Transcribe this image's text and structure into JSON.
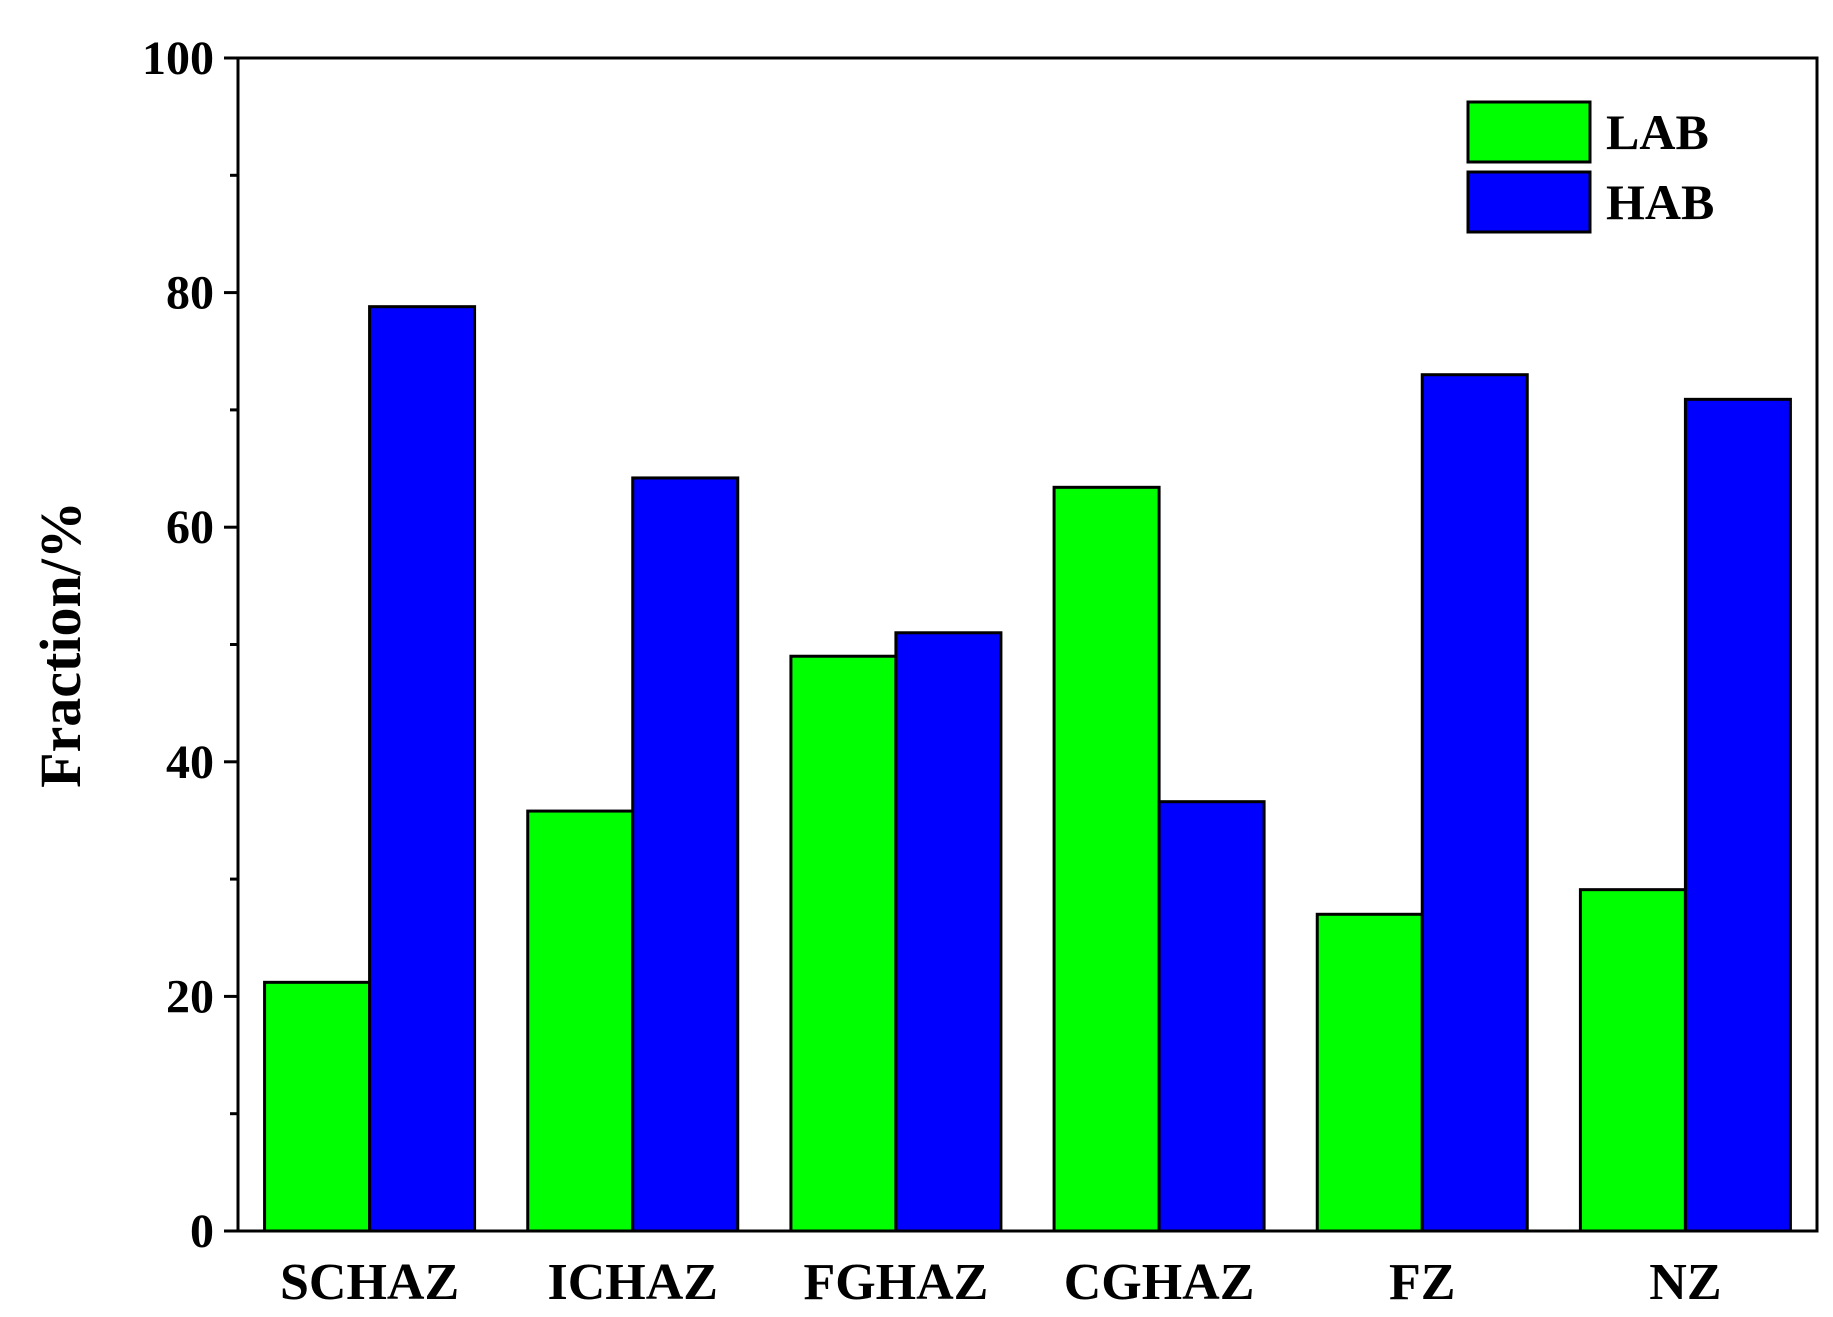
{
  "chart_data": {
    "type": "bar",
    "title": "",
    "xlabel": "",
    "ylabel": "Fraction/%",
    "ylim": [
      0,
      100
    ],
    "yticks": [
      0,
      20,
      40,
      60,
      80,
      100
    ],
    "y_minor_step": 10,
    "grid": false,
    "legend_position": "top-right",
    "categories": [
      "SCHAZ",
      "ICHAZ",
      "FGHAZ",
      "CGHAZ",
      "FZ",
      "NZ"
    ],
    "series": [
      {
        "name": "LAB",
        "color": "#00ff00",
        "values": [
          21.2,
          35.8,
          49.0,
          63.4,
          27.0,
          29.1
        ]
      },
      {
        "name": "HAB",
        "color": "#0000ff",
        "values": [
          78.8,
          64.2,
          51.0,
          36.6,
          73.0,
          70.9
        ]
      }
    ]
  }
}
